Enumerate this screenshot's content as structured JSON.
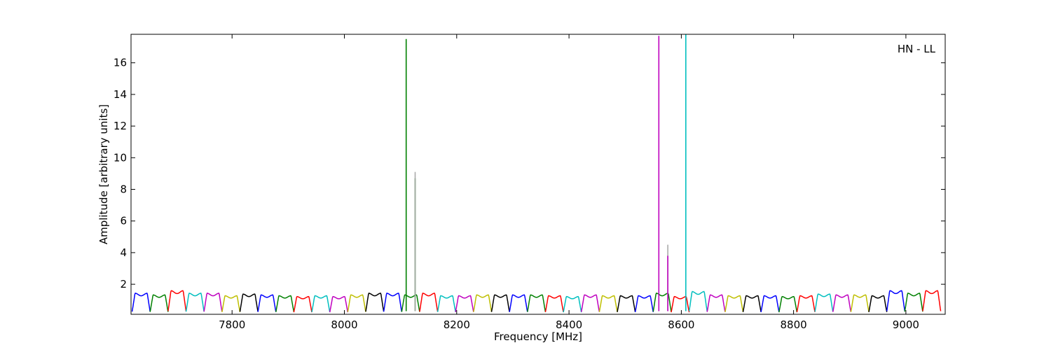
{
  "chart_data": {
    "type": "line",
    "title": "",
    "annotation": "HN - LL",
    "xlabel": "Frequency [MHz]",
    "ylabel": "Amplitude [arbitrary units]",
    "xlim": [
      7620,
      9070
    ],
    "ylim": [
      0.1,
      17.8
    ],
    "xticks": [
      7800,
      8000,
      8200,
      8400,
      8600,
      8800,
      9000
    ],
    "xtick_labels": [
      "7800",
      "8000",
      "8200",
      "8400",
      "8600",
      "8800",
      "9000"
    ],
    "yticks": [
      2,
      4,
      6,
      8,
      10,
      12,
      14,
      16
    ],
    "ytick_labels": [
      "2",
      "4",
      "6",
      "8",
      "10",
      "12",
      "14",
      "16"
    ],
    "grid": false,
    "legend": "none",
    "color_cycle": [
      "#0000ff",
      "#008000",
      "#ff0000",
      "#00bfbf",
      "#bf00bf",
      "#bfbf00",
      "#000000"
    ],
    "channel_width_mhz": 32,
    "channel_starts_mhz": [
      7622,
      7654,
      7686,
      7718,
      7750,
      7782,
      7814,
      7846,
      7878,
      7910,
      7942,
      7974,
      8006,
      8038,
      8070,
      8102,
      8134,
      8166,
      8198,
      8230,
      8262,
      8294,
      8326,
      8358,
      8390,
      8422,
      8454,
      8486,
      8518,
      8550,
      8582,
      8614,
      8646,
      8678,
      8710,
      8742,
      8774,
      8806,
      8838,
      8870,
      8902,
      8934,
      8966,
      8998,
      9030
    ],
    "channel_plateau": [
      1.35,
      1.25,
      1.5,
      1.35,
      1.35,
      1.2,
      1.3,
      1.25,
      1.2,
      1.15,
      1.2,
      1.15,
      1.25,
      1.35,
      1.35,
      1.25,
      1.35,
      1.2,
      1.2,
      1.25,
      1.25,
      1.25,
      1.25,
      1.2,
      1.15,
      1.25,
      1.2,
      1.2,
      1.2,
      1.35,
      1.15,
      1.45,
      1.25,
      1.2,
      1.2,
      1.2,
      1.15,
      1.2,
      1.3,
      1.25,
      1.25,
      1.2,
      1.5,
      1.35,
      1.5
    ],
    "series": [
      {
        "color": "#008000",
        "type": "spike",
        "x": 8110,
        "y": 17.5
      },
      {
        "color": "#008000",
        "type": "spike",
        "x": 8126,
        "y": 8.7
      },
      {
        "color": "#aaaaaa",
        "type": "spike",
        "x": 8126,
        "y": 9.1
      },
      {
        "color": "#bf00bf",
        "type": "spike",
        "x": 8560,
        "y": 17.7
      },
      {
        "color": "#aaaaaa",
        "type": "spike",
        "x": 8576,
        "y": 4.5
      },
      {
        "color": "#bf00bf",
        "type": "spike",
        "x": 8576,
        "y": 3.8
      },
      {
        "color": "#00bfbf",
        "type": "spike",
        "x": 8608,
        "y": 17.8
      }
    ]
  }
}
